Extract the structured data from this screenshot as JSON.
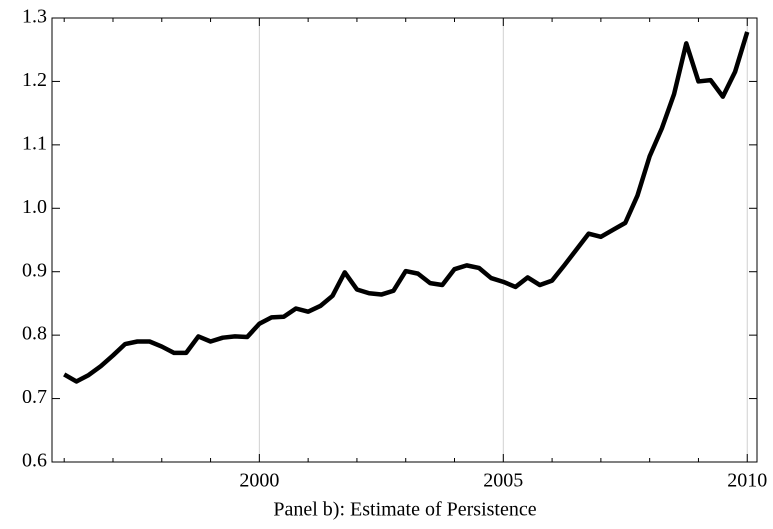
{
  "chart_data": {
    "type": "line",
    "title": "Panel b): Estimate of Persistence",
    "x": [
      1996,
      1996.25,
      1996.5,
      1996.75,
      1997,
      1997.25,
      1997.5,
      1997.75,
      1998,
      1998.25,
      1998.5,
      1998.75,
      1999,
      1999.25,
      1999.5,
      1999.75,
      2000,
      2000.25,
      2000.5,
      2000.75,
      2001,
      2001.25,
      2001.5,
      2001.75,
      2002,
      2002.25,
      2002.5,
      2002.75,
      2003,
      2003.25,
      2003.5,
      2003.75,
      2004,
      2004.25,
      2004.5,
      2004.75,
      2005,
      2005.25,
      2005.5,
      2005.75,
      2006,
      2006.25,
      2006.5,
      2006.75,
      2007,
      2007.25,
      2007.5,
      2007.75,
      2008,
      2008.25,
      2008.5,
      2008.75,
      2009,
      2009.25,
      2009.5,
      2009.75,
      2010
    ],
    "values": [
      0.738,
      0.727,
      0.737,
      0.751,
      0.768,
      0.786,
      0.79,
      0.79,
      0.782,
      0.772,
      0.772,
      0.798,
      0.79,
      0.796,
      0.798,
      0.797,
      0.818,
      0.828,
      0.829,
      0.842,
      0.837,
      0.846,
      0.862,
      0.899,
      0.872,
      0.866,
      0.864,
      0.87,
      0.901,
      0.897,
      0.882,
      0.879,
      0.904,
      0.91,
      0.906,
      0.89,
      0.884,
      0.876,
      0.891,
      0.879,
      0.886,
      0.91,
      0.935,
      0.96,
      0.955,
      0.966,
      0.977,
      1.02,
      1.082,
      1.126,
      1.18,
      1.26,
      1.2,
      1.202,
      1.176,
      1.215,
      1.278
    ],
    "color": "#000000",
    "xlim": [
      1995.75,
      2010.2
    ],
    "xticks": [
      2000,
      2005,
      2010
    ],
    "xminorticks": [
      1996,
      1997,
      1998,
      1999,
      2001,
      2002,
      2003,
      2004,
      2006,
      2007,
      2008,
      2009
    ],
    "ylim": [
      0.6,
      1.3
    ],
    "yticks": [
      0.6,
      0.7,
      0.8,
      0.9,
      {
        "value": 1,
        "label": "1.0"
      },
      1.1,
      1.2,
      1.3
    ],
    "grid": "x"
  }
}
